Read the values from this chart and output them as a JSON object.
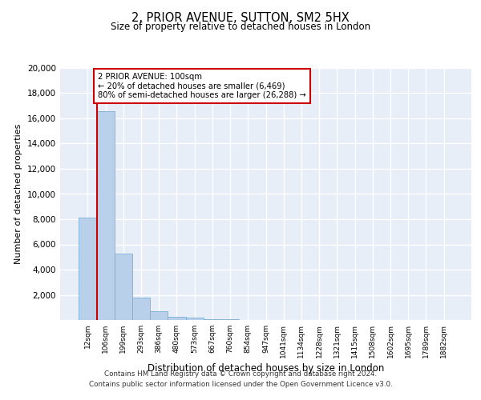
{
  "title_line1": "2, PRIOR AVENUE, SUTTON, SM2 5HX",
  "title_line2": "Size of property relative to detached houses in London",
  "xlabel": "Distribution of detached houses by size in London",
  "ylabel": "Number of detached properties",
  "categories": [
    "12sqm",
    "106sqm",
    "199sqm",
    "293sqm",
    "386sqm",
    "480sqm",
    "573sqm",
    "667sqm",
    "760sqm",
    "854sqm",
    "947sqm",
    "1041sqm",
    "1134sqm",
    "1228sqm",
    "1321sqm",
    "1415sqm",
    "1508sqm",
    "1602sqm",
    "1695sqm",
    "1789sqm",
    "1882sqm"
  ],
  "values": [
    8100,
    16600,
    5300,
    1800,
    700,
    280,
    160,
    80,
    40,
    0,
    0,
    0,
    0,
    0,
    0,
    0,
    0,
    0,
    0,
    0,
    0
  ],
  "bar_color": "#b8d0ea",
  "bar_edge_color": "#7aafd4",
  "annotation_text_line1": "2 PRIOR AVENUE: 100sqm",
  "annotation_text_line2": "← 20% of detached houses are smaller (6,469)",
  "annotation_text_line3": "80% of semi-detached houses are larger (26,288) →",
  "annotation_box_facecolor": "#ffffff",
  "annotation_box_edgecolor": "#cc0000",
  "vertical_line_color": "#cc0000",
  "ylim_max": 20000,
  "background_color": "#e8eef8",
  "grid_color": "#ffffff",
  "footer_line1": "Contains HM Land Registry data © Crown copyright and database right 2024.",
  "footer_line2": "Contains public sector information licensed under the Open Government Licence v3.0."
}
